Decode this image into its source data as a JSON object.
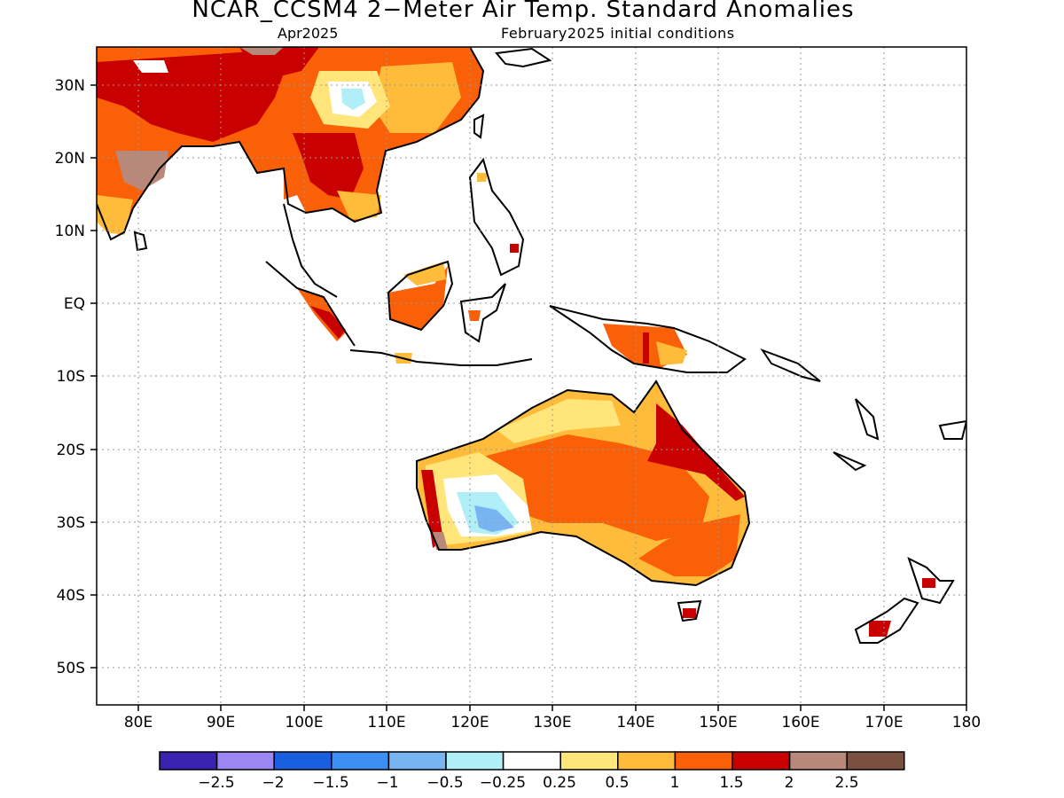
{
  "title": "NCAR_CCSM4 2−Meter Air Temp. Standard Anomalies",
  "subtitle_left": "Apr2025",
  "subtitle_right": "February2025 initial conditions",
  "lat_ticks": [
    "30N",
    "20N",
    "10N",
    "EQ",
    "10S",
    "20S",
    "30S",
    "40S",
    "50S"
  ],
  "lon_ticks": [
    "80E",
    "90E",
    "100E",
    "110E",
    "120E",
    "130E",
    "140E",
    "150E",
    "160E",
    "170E",
    "180"
  ],
  "colorbar": {
    "colors": [
      "#3a22b0",
      "#9c86f2",
      "#1a5fe0",
      "#3d8ef2",
      "#78b4f2",
      "#b0eef8",
      "#ffffff",
      "#ffe57a",
      "#ffbb3a",
      "#fa6008",
      "#c80000",
      "#b8887a",
      "#7a5040"
    ],
    "labels": [
      "−2.5",
      "−2",
      "−1.5",
      "−1",
      "−0.5",
      "−0.25",
      "0.25",
      "0.5",
      "1",
      "1.5",
      "2",
      "2.5"
    ]
  },
  "grid": "dotted",
  "land_outline_color": "#000000"
}
